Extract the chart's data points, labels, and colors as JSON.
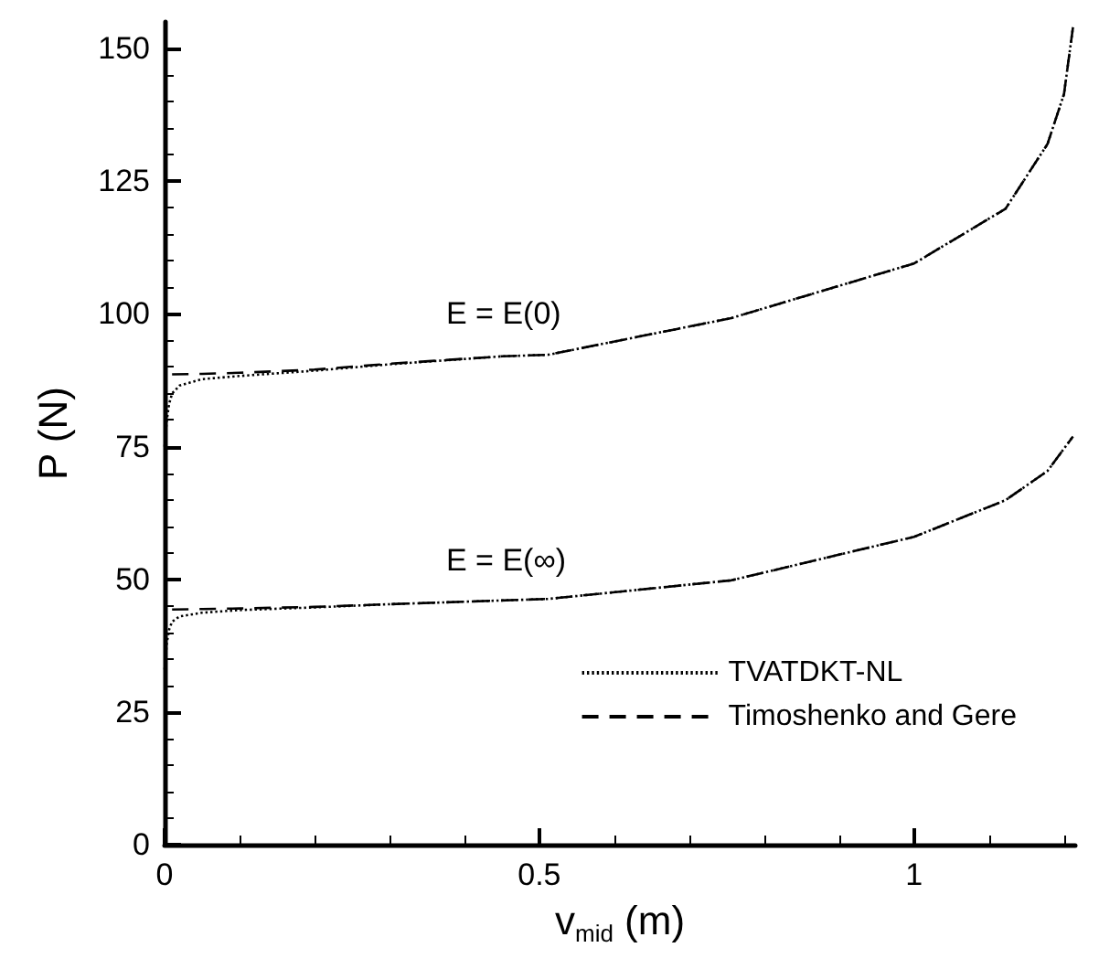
{
  "chart_data": {
    "type": "line",
    "xlabel": "v$_{mid}$ (m)",
    "ylabel": "P (N)",
    "xlim": [
      0,
      1.215
    ],
    "xticks": [
      0,
      0.5,
      1
    ],
    "ylim": [
      0,
      155
    ],
    "yticks": [
      0,
      25,
      50,
      75,
      100,
      125,
      150
    ],
    "grid": false,
    "legend": "bottom right",
    "marker": "none",
    "annotations": [
      "E = E(0)",
      "E = E(∞)"
    ],
    "series": [
      {
        "name": "TVATDKT-NL",
        "color": "#000000",
        "line_style": "dotted",
        "x": [
          0,
          0.003,
          0.006,
          0.01,
          0.02,
          0.05,
          0.1,
          0.2,
          0.3,
          0.45,
          0.512,
          0.756,
          1.0,
          1.122,
          1.178,
          1.2,
          1.212
        ],
        "values": [
          75,
          80,
          83,
          85,
          86.5,
          87.7,
          88.3,
          89.3,
          90.5,
          92,
          92.3,
          99.2,
          109.5,
          119.8,
          132,
          141.4,
          154
        ]
      },
      {
        "name": "Timoshenko and Gere",
        "color": "#000000",
        "line_style": "dashed",
        "x": [
          0.01,
          0.05,
          0.1,
          0.2,
          0.3,
          0.45,
          0.512,
          0.756,
          1.0,
          1.122,
          1.178,
          1.2,
          1.212
        ],
        "values": [
          88.6,
          88.7,
          88.9,
          89.5,
          90.6,
          92,
          92.3,
          99.2,
          109.5,
          119.8,
          132,
          141.4,
          154
        ]
      },
      {
        "color": "#000000",
        "line_style": "dotted",
        "x": [
          0,
          0.003,
          0.006,
          0.01,
          0.02,
          0.05,
          0.1,
          0.2,
          0.3,
          0.512,
          0.756,
          1.0,
          1.122,
          1.178,
          1.212
        ],
        "values": [
          33,
          38,
          40.5,
          42,
          43,
          43.7,
          44.2,
          44.7,
          45.3,
          46.3,
          49.8,
          58,
          64.9,
          70.4,
          76.9
        ]
      },
      {
        "color": "#000000",
        "line_style": "dashed",
        "x": [
          0.01,
          0.05,
          0.1,
          0.2,
          0.3,
          0.512,
          0.756,
          1.0,
          1.122,
          1.178,
          1.212
        ],
        "values": [
          44.3,
          44.4,
          44.5,
          44.8,
          45.3,
          46.3,
          49.8,
          58,
          64.9,
          70.4,
          76.9
        ]
      }
    ]
  }
}
